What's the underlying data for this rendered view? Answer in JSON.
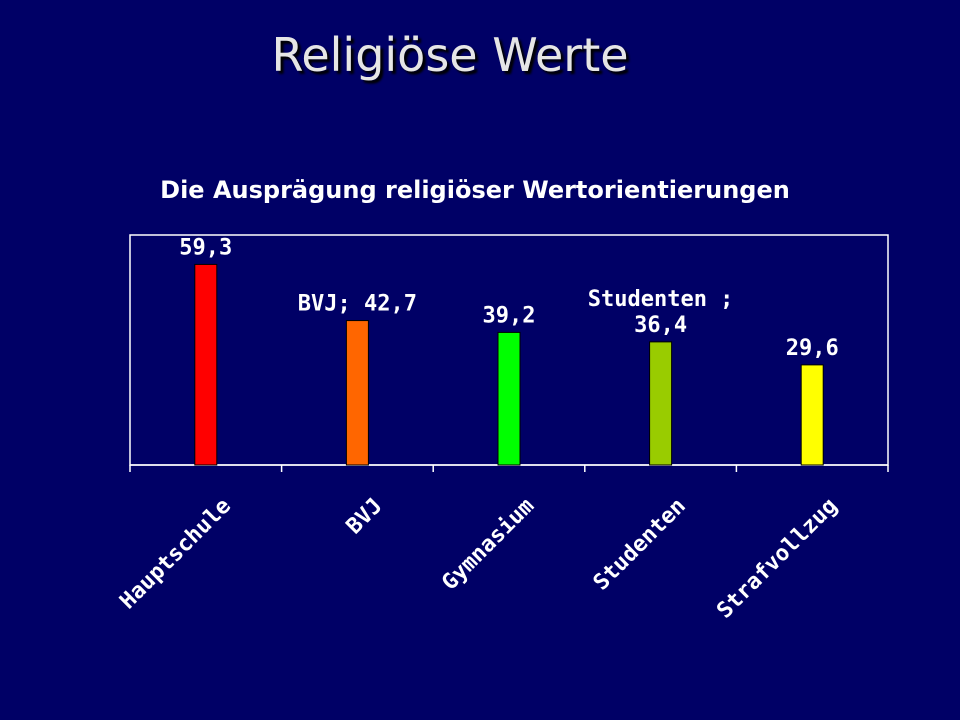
{
  "slide": {
    "title": "Religiöse Werte"
  },
  "chart_data": {
    "type": "bar",
    "title": "Die Ausprägung religiöser Wertorientierungen",
    "xlabel": "",
    "ylabel": "",
    "ylim": [
      0,
      68
    ],
    "grid": false,
    "legend": "none",
    "categories": [
      "Hauptschule",
      "BVJ",
      "Gymnasium",
      "Studenten",
      "Strafvollzug"
    ],
    "values": [
      59.3,
      42.7,
      39.2,
      36.4,
      29.6
    ],
    "data_labels": [
      [
        "59,3"
      ],
      [
        "BVJ; 42,7"
      ],
      [
        "39,2"
      ],
      [
        "Studenten ;",
        "36,4"
      ],
      [
        "29,6"
      ]
    ],
    "colors": [
      "#ff0000",
      "#ff6600",
      "#00ff00",
      "#99cc00",
      "#ffff00"
    ],
    "plot_border_color": "#ffffff",
    "background_color": "#000066"
  }
}
